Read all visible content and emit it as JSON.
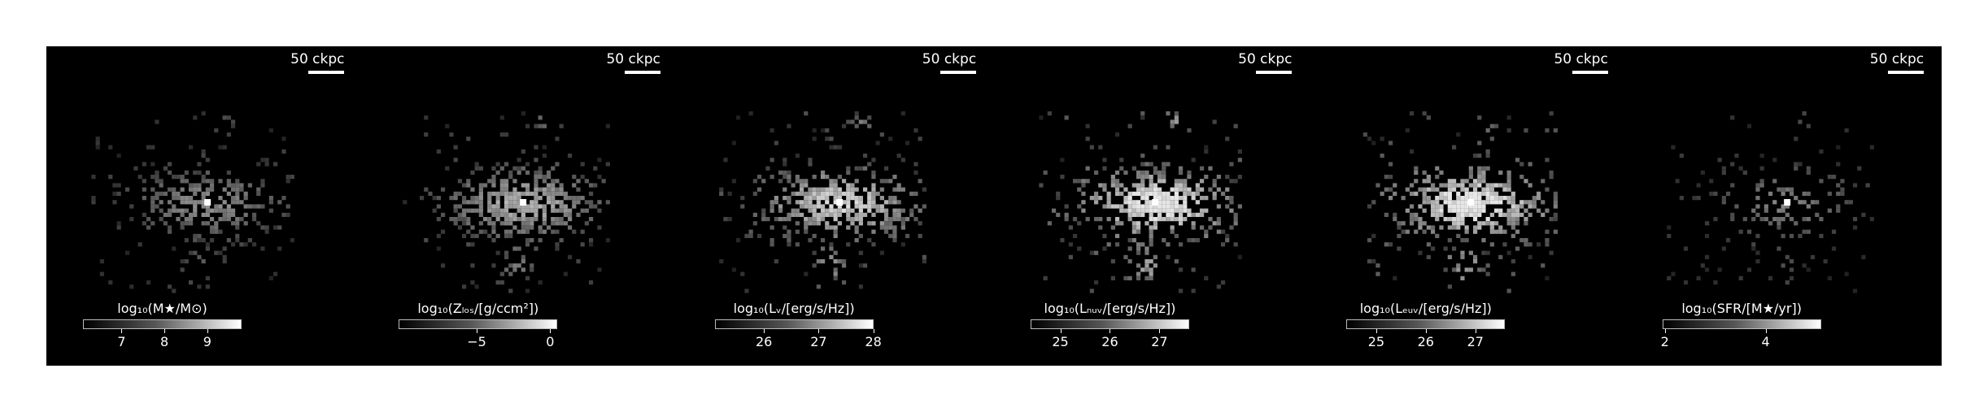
{
  "scale_bar_label": "50 ckpc",
  "panels": [
    {
      "id": "stellar-mass",
      "colorbar_label": "log₁₀(M★/M⊙)",
      "cbar_min": 6.1,
      "cbar_max": 9.8,
      "ticks": [
        {
          "value": 7,
          "label": "7"
        },
        {
          "value": 8,
          "label": "8"
        },
        {
          "value": 9,
          "label": "9"
        }
      ],
      "density": 0.55,
      "brightness": 0.45
    },
    {
      "id": "metallicity",
      "colorbar_label": "log₁₀(Zₗₒₛ/[g/ccm²])",
      "cbar_min": -10.3,
      "cbar_max": 0.5,
      "ticks": [
        {
          "value": -5,
          "label": "−5"
        },
        {
          "value": 0,
          "label": "0"
        }
      ],
      "density": 0.8,
      "brightness": 0.6
    },
    {
      "id": "lum-v",
      "colorbar_label": "log₁₀(Lᵥ/[erg/s/Hz])",
      "cbar_min": 25.1,
      "cbar_max": 28.0,
      "ticks": [
        {
          "value": 26,
          "label": "26"
        },
        {
          "value": 27,
          "label": "27"
        },
        {
          "value": 28,
          "label": "28"
        }
      ],
      "density": 0.8,
      "brightness": 0.75
    },
    {
      "id": "lum-nuv",
      "colorbar_label": "log₁₀(Lₙᵤᵥ/[erg/s/Hz])",
      "cbar_min": 24.4,
      "cbar_max": 27.6,
      "ticks": [
        {
          "value": 25,
          "label": "25"
        },
        {
          "value": 26,
          "label": "26"
        },
        {
          "value": 27,
          "label": "27"
        }
      ],
      "density": 0.85,
      "brightness": 0.9
    },
    {
      "id": "lum-fuv",
      "colorbar_label": "log₁₀(Lₑᵤᵥ/[erg/s/Hz])",
      "cbar_min": 24.4,
      "cbar_max": 27.6,
      "ticks": [
        {
          "value": 25,
          "label": "25"
        },
        {
          "value": 26,
          "label": "26"
        },
        {
          "value": 27,
          "label": "27"
        }
      ],
      "density": 0.85,
      "brightness": 0.9
    },
    {
      "id": "sfr",
      "colorbar_label": "log₁₀(SFR/[M★/yr])",
      "cbar_min": 1.95,
      "cbar_max": 5.1,
      "ticks": [
        {
          "value": 2,
          "label": "2"
        },
        {
          "value": 4,
          "label": "4"
        }
      ],
      "density": 0.25,
      "brightness": 0.4
    }
  ]
}
